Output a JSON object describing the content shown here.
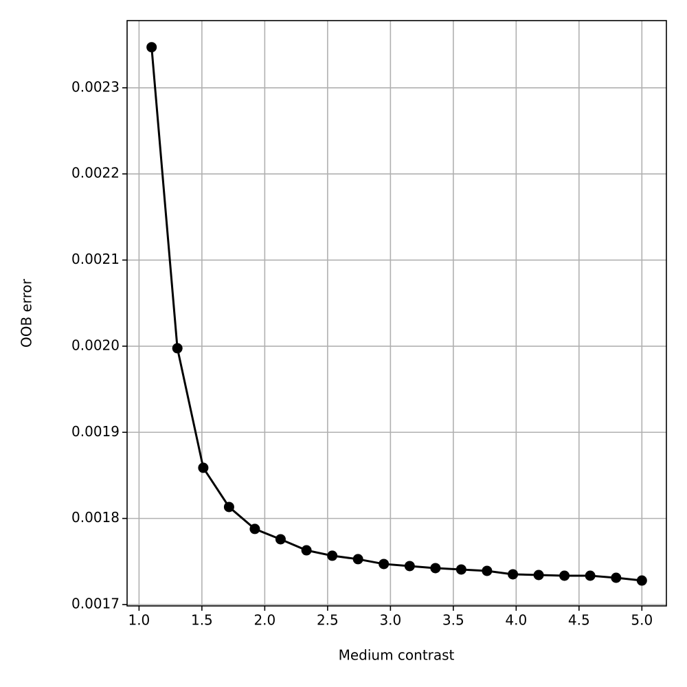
{
  "chart_data": {
    "type": "line",
    "x_label": "Medium contrast",
    "y_label": "OOB error",
    "x": [
      1.1,
      1.305,
      1.511,
      1.716,
      1.921,
      2.126,
      2.332,
      2.537,
      2.742,
      2.947,
      3.153,
      3.358,
      3.563,
      3.768,
      3.974,
      4.179,
      4.384,
      4.589,
      4.795,
      5.0
    ],
    "series": [
      {
        "color": "#000000",
        "values": [
          0.0023471,
          0.0019976,
          0.0018588,
          0.0018133,
          0.0017878,
          0.0017758,
          0.001763,
          0.0017567,
          0.0017527,
          0.0017471,
          0.0017447,
          0.0017423,
          0.0017407,
          0.0017391,
          0.0017351,
          0.0017343,
          0.0017335,
          0.0017335,
          0.0017311,
          0.0017279
        ]
      }
    ],
    "xlim": [
      0.905,
      5.195
    ],
    "ylim": [
      0.0016984,
      0.002378
    ],
    "xticks": [
      {
        "value": 1,
        "label": "1.0"
      },
      1.5,
      {
        "value": 2,
        "label": "2.0"
      },
      2.5,
      {
        "value": 3,
        "label": "3.0"
      },
      3.5,
      {
        "value": 4,
        "label": "4.0"
      },
      4.5,
      {
        "value": 5,
        "label": "5.0"
      }
    ],
    "yticks": [
      0.0017,
      0.0018,
      0.0019,
      {
        "value": 0.002,
        "label": "0.0020"
      },
      0.0021,
      0.0022,
      0.0023
    ],
    "grid": true
  }
}
